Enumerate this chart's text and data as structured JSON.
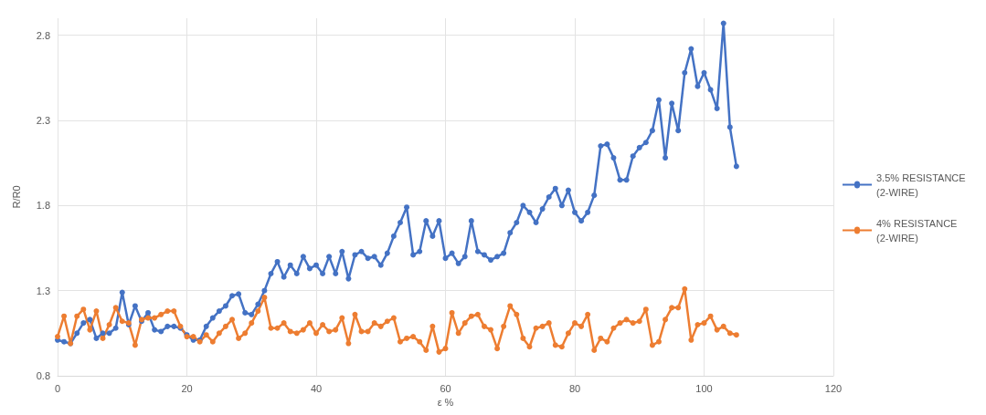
{
  "chart_data": {
    "type": "line",
    "xlabel": "ε %",
    "ylabel": "R/R0",
    "x": [
      0,
      1,
      2,
      3,
      4,
      5,
      6,
      7,
      8,
      9,
      10,
      11,
      12,
      13,
      14,
      15,
      16,
      17,
      18,
      19,
      20,
      21,
      22,
      23,
      24,
      25,
      26,
      27,
      28,
      29,
      30,
      31,
      32,
      33,
      34,
      35,
      36,
      37,
      38,
      39,
      40,
      41,
      42,
      43,
      44,
      45,
      46,
      47,
      48,
      49,
      50,
      51,
      52,
      53,
      54,
      55,
      56,
      57,
      58,
      59,
      60,
      61,
      62,
      63,
      64,
      65,
      66,
      67,
      68,
      69,
      70,
      71,
      72,
      73,
      74,
      75,
      76,
      77,
      78,
      79,
      80,
      81,
      82,
      83,
      84,
      85,
      86,
      87,
      88,
      89,
      90,
      91,
      92,
      93,
      94,
      95,
      96,
      97,
      98,
      99,
      100,
      101,
      102,
      103,
      104,
      105
    ],
    "series": [
      {
        "name": "3.5% RESISTANCE (2-WIRE)",
        "color": "#4472c4",
        "values": [
          1.01,
          1.0,
          0.99,
          1.05,
          1.11,
          1.13,
          1.02,
          1.05,
          1.05,
          1.08,
          1.29,
          1.1,
          1.21,
          1.12,
          1.17,
          1.07,
          1.06,
          1.09,
          1.09,
          1.08,
          1.04,
          1.01,
          1.01,
          1.09,
          1.14,
          1.18,
          1.21,
          1.27,
          1.28,
          1.17,
          1.16,
          1.22,
          1.3,
          1.4,
          1.47,
          1.38,
          1.45,
          1.4,
          1.5,
          1.43,
          1.45,
          1.4,
          1.5,
          1.4,
          1.53,
          1.37,
          1.51,
          1.53,
          1.49,
          1.5,
          1.45,
          1.52,
          1.62,
          1.7,
          1.79,
          1.51,
          1.53,
          1.71,
          1.62,
          1.71,
          1.49,
          1.52,
          1.46,
          1.5,
          1.71,
          1.53,
          1.51,
          1.48,
          1.5,
          1.52,
          1.64,
          1.7,
          1.8,
          1.76,
          1.7,
          1.78,
          1.85,
          1.9,
          1.8,
          1.89,
          1.76,
          1.71,
          1.76,
          1.86,
          2.15,
          2.16,
          2.08,
          1.95,
          1.95,
          2.09,
          2.14,
          2.17,
          2.24,
          2.42,
          2.08,
          2.4,
          2.24,
          2.58,
          2.72,
          2.5,
          2.58,
          2.48,
          2.37,
          2.87,
          2.26,
          2.03
        ]
      },
      {
        "name": "4% RESISTANCE (2-WIRE)",
        "color": "#ed7d31",
        "values": [
          1.03,
          1.15,
          0.99,
          1.15,
          1.19,
          1.07,
          1.18,
          1.02,
          1.1,
          1.2,
          1.12,
          1.11,
          0.98,
          1.13,
          1.14,
          1.14,
          1.16,
          1.18,
          1.18,
          1.09,
          1.03,
          1.03,
          1.0,
          1.04,
          1.0,
          1.05,
          1.09,
          1.13,
          1.02,
          1.05,
          1.11,
          1.18,
          1.26,
          1.08,
          1.08,
          1.11,
          1.06,
          1.05,
          1.07,
          1.11,
          1.05,
          1.1,
          1.06,
          1.07,
          1.14,
          0.99,
          1.16,
          1.06,
          1.06,
          1.11,
          1.09,
          1.12,
          1.14,
          1.0,
          1.02,
          1.03,
          1.0,
          0.95,
          1.09,
          0.94,
          0.96,
          1.17,
          1.05,
          1.11,
          1.15,
          1.16,
          1.09,
          1.07,
          0.96,
          1.09,
          1.21,
          1.16,
          1.02,
          0.97,
          1.08,
          1.09,
          1.11,
          0.98,
          0.97,
          1.05,
          1.11,
          1.09,
          1.16,
          0.95,
          1.02,
          1.0,
          1.08,
          1.11,
          1.13,
          1.11,
          1.12,
          1.19,
          0.98,
          1.0,
          1.13,
          1.2,
          1.2,
          1.31,
          1.01,
          1.1,
          1.11,
          1.15,
          1.07,
          1.09,
          1.05,
          1.04
        ]
      }
    ],
    "xlim": [
      0,
      120
    ],
    "xticks": [
      0,
      20,
      40,
      60,
      80,
      100,
      120
    ],
    "ylim": [
      0.8,
      2.9
    ],
    "yticks": [
      0.8,
      1.3,
      1.8,
      2.3,
      2.8
    ],
    "grid": true,
    "legend": "right",
    "marker": "circle",
    "line_style": "solid"
  }
}
